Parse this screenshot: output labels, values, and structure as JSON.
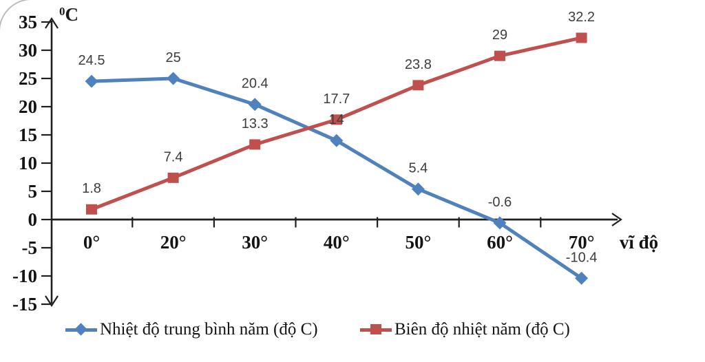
{
  "chart_data": {
    "type": "line",
    "title": "",
    "x_axis_label": "vĩ độ",
    "y_axis_unit_sup": "0",
    "y_axis_unit": "C",
    "categories": [
      "0°",
      "20°",
      "30°",
      "40°",
      "50°",
      "60°",
      "70°"
    ],
    "y_ticks": [
      "35",
      "30",
      "25",
      "20",
      "15",
      "10",
      "5",
      "0",
      "-5",
      "-10",
      "-15"
    ],
    "ylim": [
      -15,
      35
    ],
    "grid": false,
    "legend_position": "bottom",
    "axis_color": "#1f1f1f",
    "data_label_color": "#3d3d3d",
    "series": [
      {
        "name": "Nhiệt độ trung bình năm (độ C)",
        "color": "#4F81BD",
        "marker": "diamond",
        "values": [
          24.5,
          25,
          20.4,
          14,
          5.4,
          -0.6,
          -10.4
        ],
        "labels": [
          "24.5",
          "25",
          "20.4",
          "14",
          "5.4",
          "-0.6",
          "-10.4"
        ]
      },
      {
        "name": "Biên độ nhiệt năm (độ C)",
        "color": "#C0504D",
        "marker": "square",
        "values": [
          1.8,
          7.4,
          13.3,
          17.7,
          23.8,
          29,
          32.2
        ],
        "labels": [
          "1.8",
          "7.4",
          "13.3",
          "17.7",
          "23.8",
          "29",
          "32.2"
        ]
      }
    ]
  }
}
